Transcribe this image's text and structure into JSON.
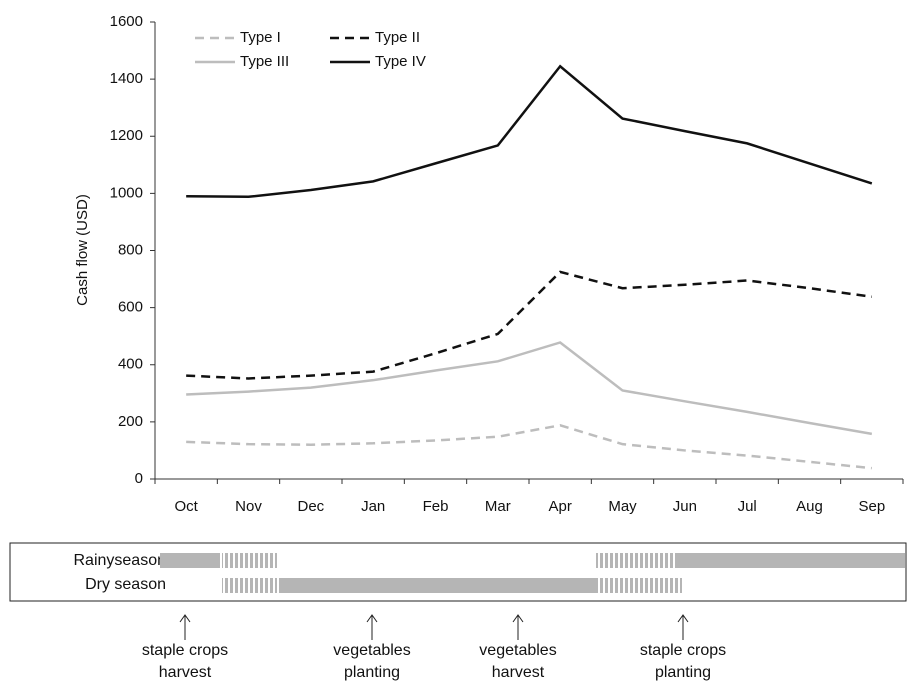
{
  "chart_data": {
    "type": "line",
    "ylabel": "Cash flow (USD)",
    "categories": [
      "Oct",
      "Nov",
      "Dec",
      "Jan",
      "Feb",
      "Mar",
      "Apr",
      "May",
      "Jun",
      "Jul",
      "Aug",
      "Sep"
    ],
    "series": [
      {
        "name": "Type I",
        "color": "#bdbdbd",
        "dash": true,
        "values": [
          130,
          122,
          120,
          125,
          135,
          148,
          188,
          122,
          100,
          82,
          60,
          38
        ]
      },
      {
        "name": "Type II",
        "color": "#111111",
        "dash": true,
        "values": [
          362,
          352,
          362,
          376,
          440,
          508,
          725,
          668,
          680,
          695,
          668,
          638
        ]
      },
      {
        "name": "Type III",
        "color": "#bdbdbd",
        "dash": false,
        "values": [
          296,
          306,
          320,
          346,
          380,
          412,
          478,
          310,
          272,
          235,
          196,
          158
        ]
      },
      {
        "name": "Type IV",
        "color": "#111111",
        "dash": false,
        "values": [
          990,
          988,
          1012,
          1042,
          1105,
          1168,
          1445,
          1262,
          1218,
          1175,
          1105,
          1035
        ]
      }
    ],
    "ylim": [
      0,
      1600
    ],
    "yticks": [
      0,
      200,
      400,
      600,
      800,
      1000,
      1200,
      1400,
      1600
    ],
    "legend": "upper left",
    "grid": false
  },
  "seasons": {
    "rows": [
      "Rainyseason",
      "Dry season"
    ],
    "events": [
      [
        "staple crops",
        "harvest"
      ],
      [
        "vegetables",
        "planting"
      ],
      [
        "vegetables",
        "harvest"
      ],
      [
        "staple crops",
        "planting"
      ]
    ]
  }
}
